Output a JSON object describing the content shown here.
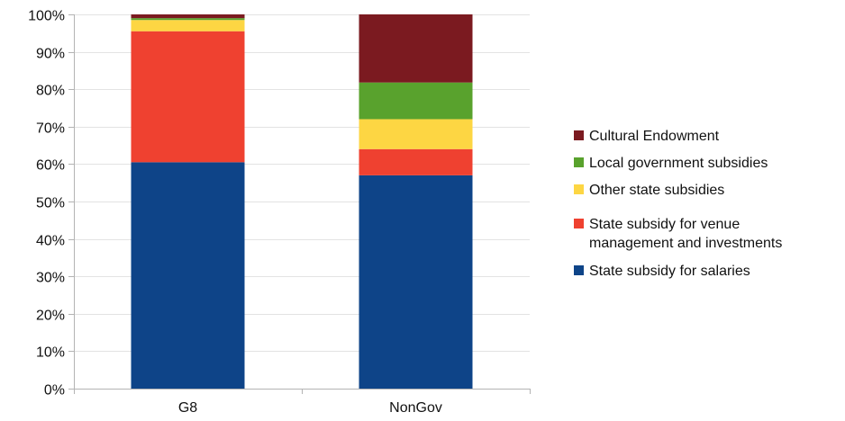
{
  "chart_data": {
    "type": "bar",
    "stacked": true,
    "categories": [
      "G8",
      "NonGov"
    ],
    "series": [
      {
        "name": "State subsidy for salaries",
        "values": [
          60.5,
          57.0
        ],
        "color": "#0e4488"
      },
      {
        "name": "State subsidy for venue management and investments",
        "values": [
          35.0,
          7.0
        ],
        "color": "#ef4130"
      },
      {
        "name": "Other state subsidies",
        "values": [
          3.0,
          8.0
        ],
        "color": "#fdd643"
      },
      {
        "name": "Local government subsidies",
        "values": [
          0.5,
          9.8
        ],
        "color": "#59a22d"
      },
      {
        "name": "Cultural Endowment",
        "values": [
          1.0,
          18.2
        ],
        "color": "#7b1a20"
      }
    ],
    "ylim": [
      0,
      100
    ],
    "yticks": [
      "0%",
      "10%",
      "20%",
      "30%",
      "40%",
      "50%",
      "60%",
      "70%",
      "80%",
      "90%",
      "100%"
    ],
    "grid": true,
    "legend_position": "right",
    "legend": [
      {
        "lines": [
          "Cultural Endowment"
        ],
        "color": "#7b1a20"
      },
      {
        "lines": [
          "Local government subsidies"
        ],
        "color": "#59a22d"
      },
      {
        "lines": [
          "Other state subsidies"
        ],
        "color": "#fdd643"
      },
      {
        "lines": [
          "State subsidy for venue",
          "management and investments"
        ],
        "color": "#ef4130"
      },
      {
        "lines": [
          "State subsidy for salaries"
        ],
        "color": "#0e4488"
      }
    ],
    "title": "",
    "xlabel": "",
    "ylabel": ""
  }
}
